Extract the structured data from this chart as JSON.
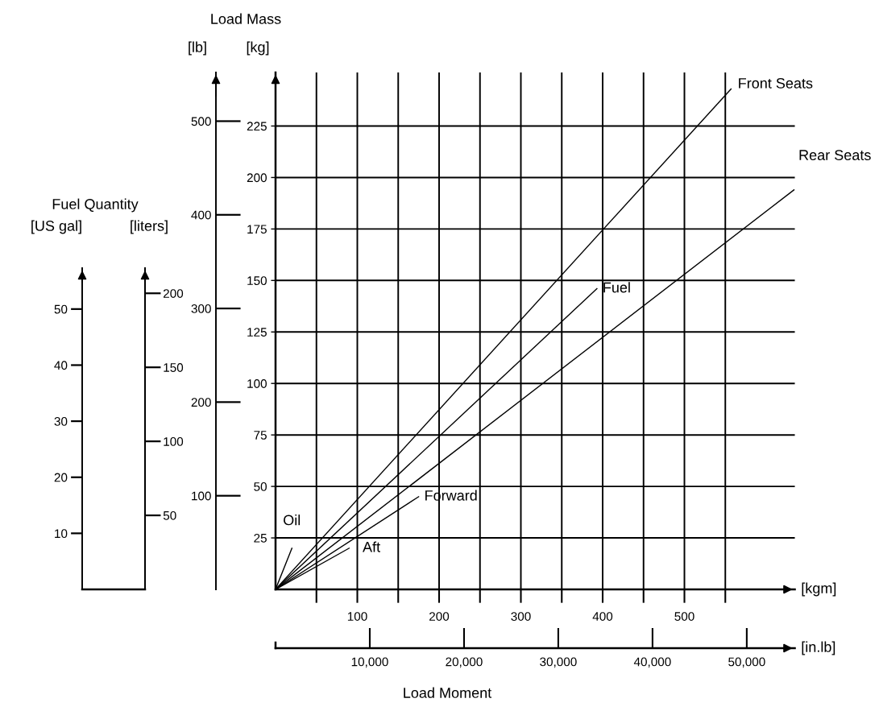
{
  "chart_data": [
    {
      "type": "line",
      "xlabel": "[kgm]",
      "ylabel": "[kg]",
      "x2label": "[in.lb]",
      "y2label": "[lb]",
      "annotations": [
        "Load Mass",
        "Load Moment"
      ],
      "xlim": [
        0,
        635
      ],
      "xticks": [
        {
          "value": 50,
          "label": null
        },
        100,
        {
          "value": 150,
          "label": null
        },
        200,
        {
          "value": 250,
          "label": null
        },
        300,
        {
          "value": 350,
          "label": null
        },
        400,
        {
          "value": 450,
          "label": null
        },
        500,
        {
          "value": 550,
          "label": null
        }
      ],
      "x2lim": [
        0,
        55100
      ],
      "x2ticks": [
        {
          "value": 10000,
          "label": "10,000"
        },
        {
          "value": 20000,
          "label": "20,000"
        },
        {
          "value": 30000,
          "label": "30,000"
        },
        {
          "value": 40000,
          "label": "40,000"
        },
        {
          "value": 50000,
          "label": "50,000"
        }
      ],
      "ylim": [
        0,
        251
      ],
      "yticks": [
        25,
        50,
        75,
        100,
        125,
        150,
        175,
        200,
        225
      ],
      "y2lim": [
        0,
        552
      ],
      "y2ticks": [
        100,
        200,
        300,
        400,
        500
      ],
      "grid": true,
      "line_style": "solid",
      "series": [
        {
          "name": "Front Seats",
          "color": "#000000",
          "x": [
            0,
            557
          ],
          "values": [
            0,
            243
          ]
        },
        {
          "name": "Rear Seats",
          "color": "#000000",
          "x": [
            0,
            634
          ],
          "values": [
            0,
            194
          ]
        },
        {
          "name": "Fuel",
          "color": "#000000",
          "x": [
            0,
            393
          ],
          "values": [
            0,
            146
          ]
        },
        {
          "name": "Forward",
          "color": "#000000",
          "x": [
            0,
            175
          ],
          "values": [
            0,
            45
          ]
        },
        {
          "name": "Aft",
          "color": "#000000",
          "x": [
            0,
            90
          ],
          "values": [
            0,
            20
          ]
        },
        {
          "name": "Oil",
          "color": "#000000",
          "x": [
            0,
            20
          ],
          "values": [
            0,
            20
          ]
        }
      ]
    },
    {
      "type": "line",
      "title": "Fuel Quantity",
      "ylabel": "[US gal]",
      "y2label": "[liters]",
      "tick_labels": "y",
      "categories": [
        null
      ],
      "ylim": [
        0,
        57.3
      ],
      "yticks": [
        10,
        20,
        30,
        40,
        50
      ],
      "y2lim": [
        0,
        217
      ],
      "y2ticks": [
        50,
        100,
        150,
        200
      ]
    }
  ]
}
